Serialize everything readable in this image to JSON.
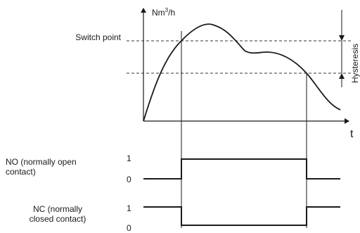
{
  "y_axis_label": {
    "base": "Nm",
    "sup": "3",
    "tail": "/h"
  },
  "x_axis_label": "t",
  "switch_point_label": "Switch point",
  "hysteresis_label": "Hysteresis",
  "no_label_line1": "NO (normally open",
  "no_label_line2": "contact)",
  "nc_label_line1": "NC (normally",
  "nc_label_line2": "closed contact)",
  "no_high": "1",
  "no_low": "0",
  "nc_high": "1",
  "nc_low": "0",
  "colors": {
    "line": "#1a1a1a",
    "dashed": "#333333",
    "background": "#ffffff"
  }
}
